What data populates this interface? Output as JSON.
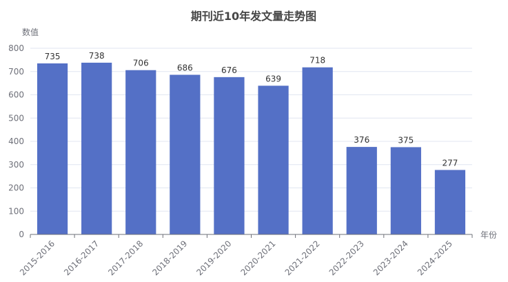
{
  "chart_data": {
    "type": "bar",
    "title": "期刊近10年发文量走势图",
    "xlabel": "年份",
    "ylabel": "数值",
    "categories": [
      "2015-2016",
      "2016-2017",
      "2017-2018",
      "2018-2019",
      "2019-2020",
      "2020-2021",
      "2021-2022",
      "2022-2023",
      "2023-2024",
      "2024-2025"
    ],
    "values": [
      735,
      738,
      706,
      686,
      676,
      639,
      718,
      376,
      375,
      277
    ],
    "ylim": [
      0,
      800
    ],
    "yticks": [
      0,
      100,
      200,
      300,
      400,
      500,
      600,
      700,
      800
    ],
    "grid": true,
    "legend": "none",
    "colors": {
      "bar": "#5470c6",
      "grid": "#e0e6f1",
      "axis": "#6e7079"
    }
  }
}
